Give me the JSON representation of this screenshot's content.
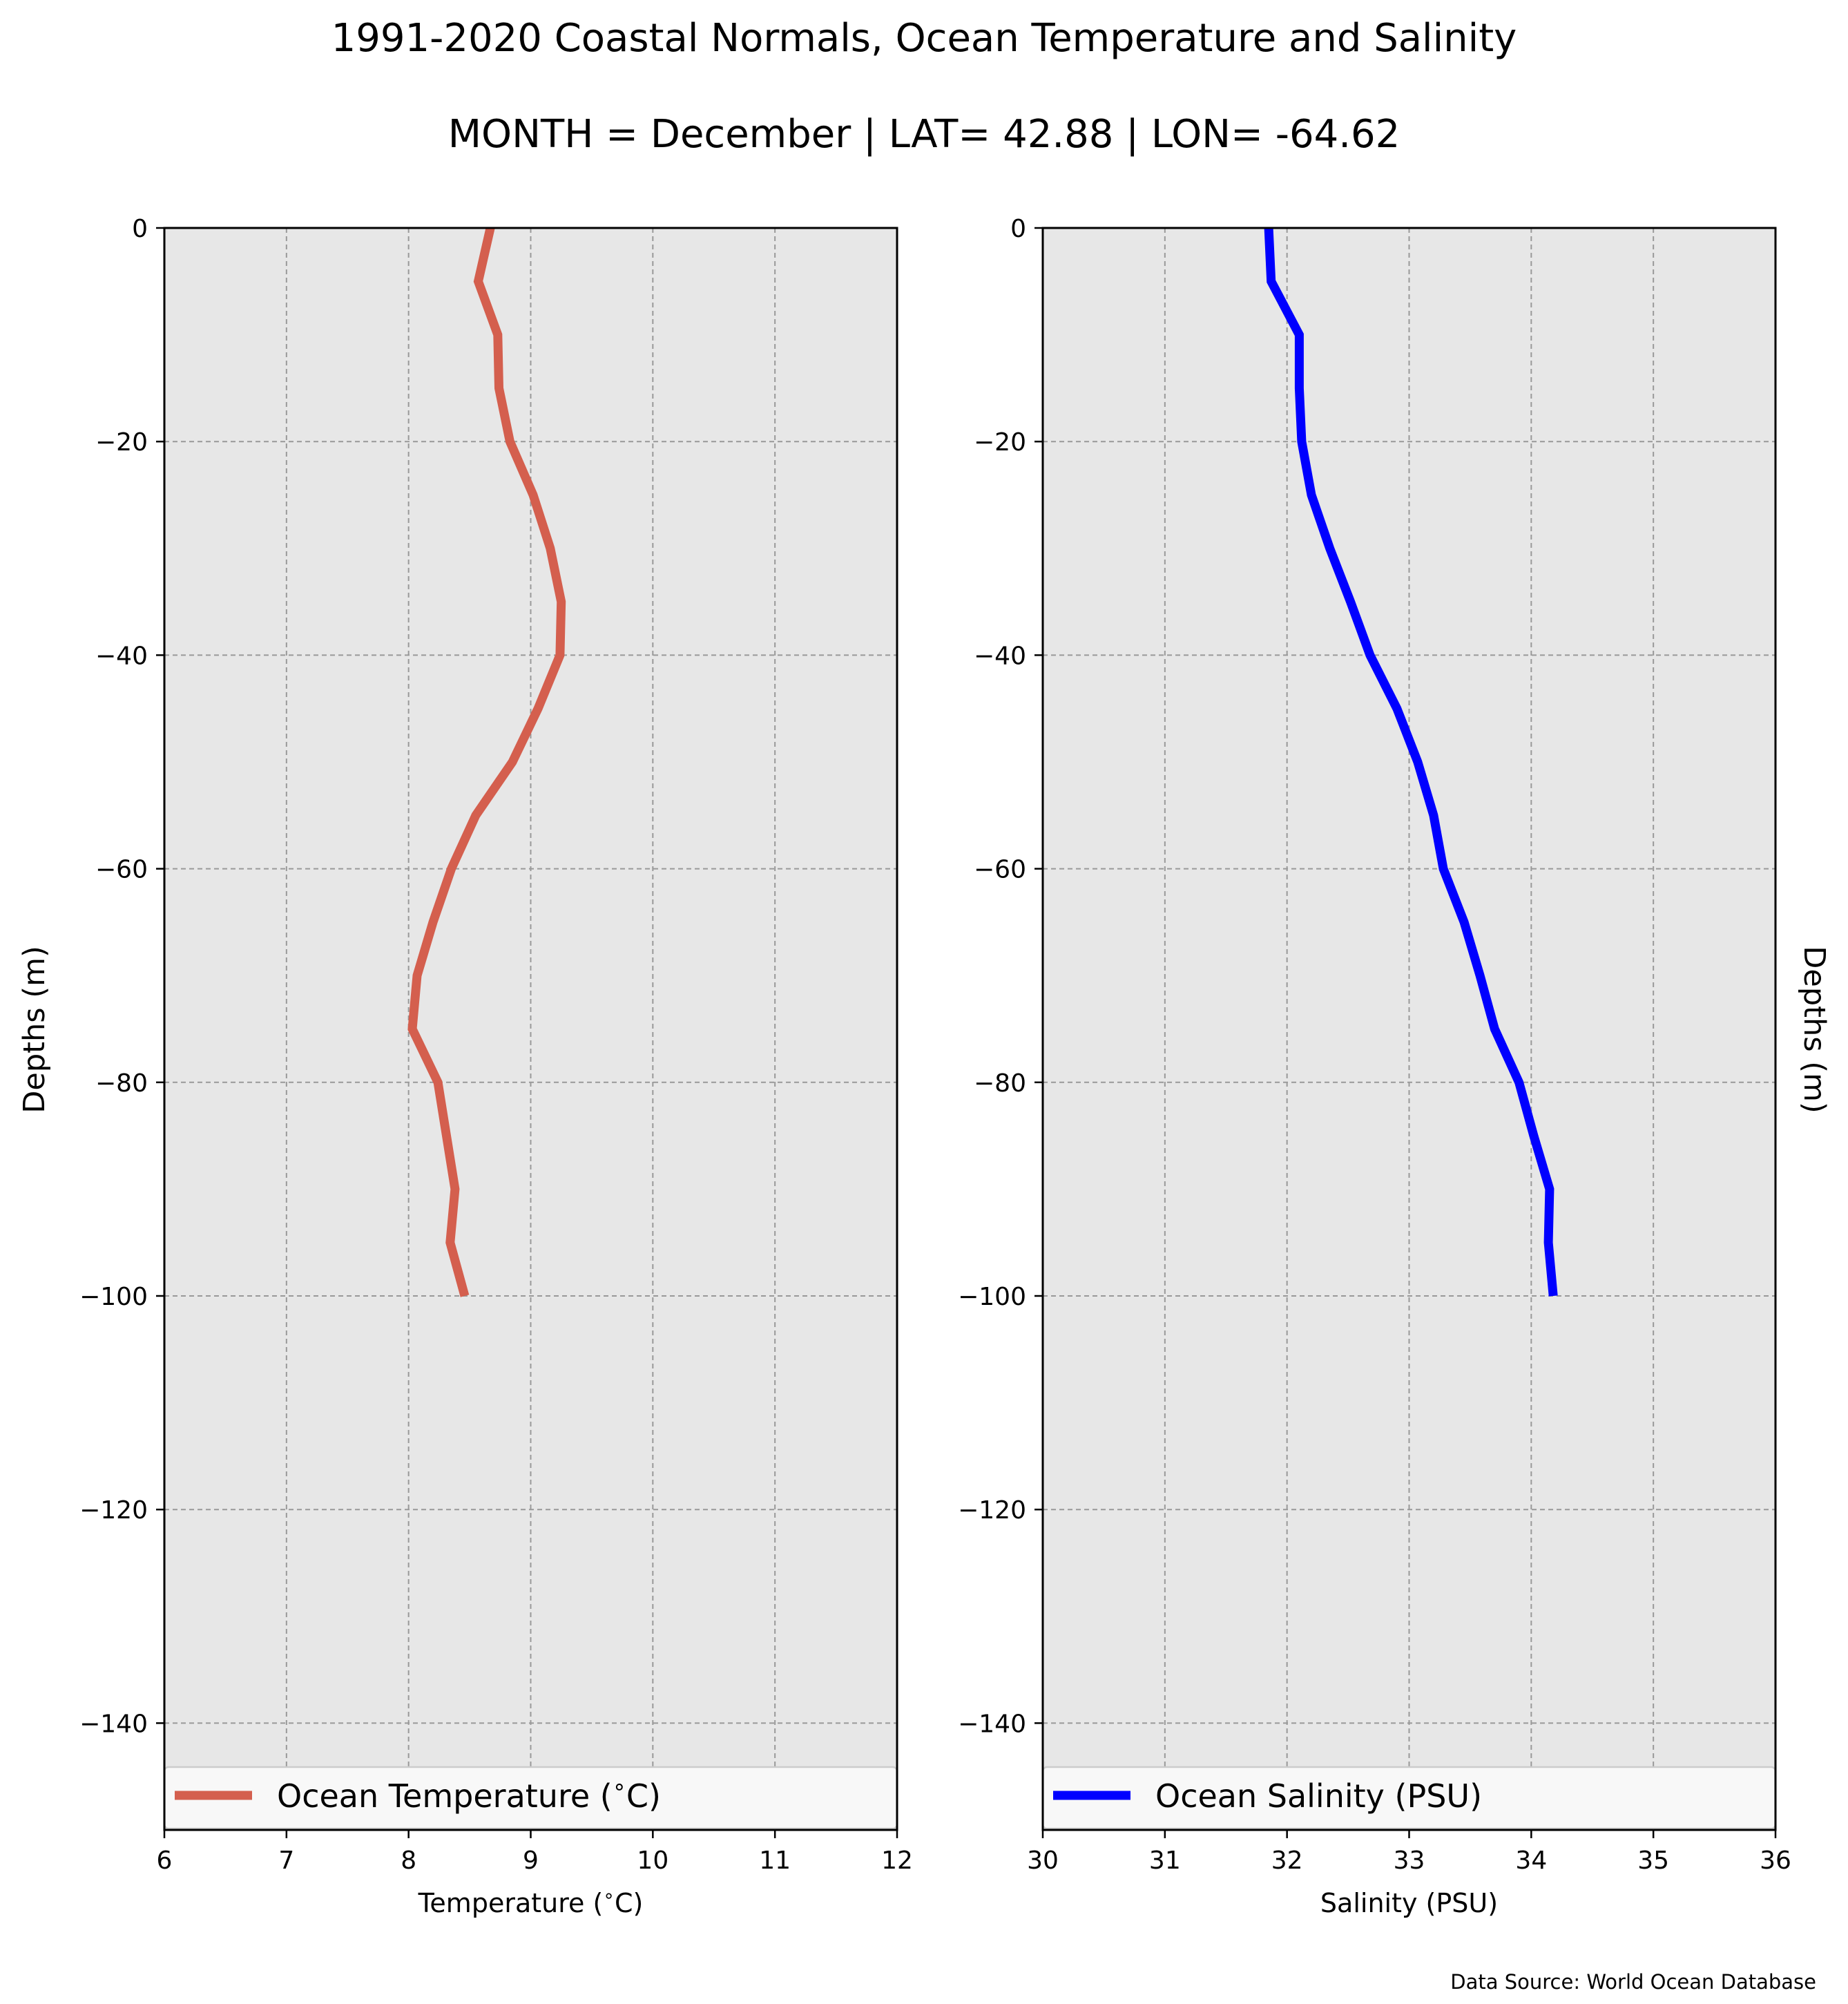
{
  "title": "1991-2020 Coastal Normals, Ocean Temperature and Salinity",
  "subtitle": "MONTH = December | LAT= 42.88 | LON= -64.62",
  "source": "Data Source: World Ocean Database",
  "chart_data": [
    {
      "type": "line",
      "xlabel": "Temperature ($^\\circ$C)",
      "ylabel": "Depths (m)",
      "ylabel_side": "left",
      "xlim": [
        6,
        12
      ],
      "ylim": [
        -150,
        0
      ],
      "xticks": [
        6,
        7,
        8,
        9,
        10,
        11,
        12
      ],
      "yticks": [
        0,
        -20,
        -40,
        -60,
        -80,
        -100,
        -120,
        -140
      ],
      "grid": true,
      "legend_placement": "bottom",
      "series": [
        {
          "name": "Ocean Temperature ($^\\circ$C)",
          "color": "#d45f4e",
          "x": [
            8.67,
            8.57,
            8.73,
            8.74,
            8.83,
            9.02,
            9.16,
            9.25,
            9.24,
            9.06,
            8.85,
            8.55,
            8.35,
            8.2,
            8.07,
            8.03,
            8.24,
            8.31,
            8.38,
            8.34,
            8.46
          ],
          "y": [
            0,
            -5,
            -10,
            -15,
            -20,
            -25,
            -30,
            -35,
            -40,
            -45,
            -50,
            -55,
            -60,
            -65,
            -70,
            -75,
            -80,
            -85,
            -90,
            -95,
            -100
          ]
        }
      ]
    },
    {
      "type": "line",
      "xlabel": "Salinity (PSU)",
      "ylabel": "Depths (m)",
      "ylabel_side": "right",
      "xlim": [
        30,
        36
      ],
      "ylim": [
        -150,
        0
      ],
      "xticks": [
        30,
        31,
        32,
        33,
        34,
        35,
        36
      ],
      "yticks": [
        0,
        -20,
        -40,
        -60,
        -80,
        -100,
        -120,
        -140
      ],
      "grid": true,
      "legend_placement": "bottom",
      "series": [
        {
          "name": "Ocean Salinity (PSU)",
          "color": "#0000ff",
          "x": [
            31.85,
            31.87,
            32.1,
            32.1,
            32.12,
            32.2,
            32.35,
            32.52,
            32.68,
            32.9,
            33.07,
            33.2,
            33.28,
            33.45,
            33.58,
            33.7,
            33.9,
            34.02,
            34.15,
            34.14,
            34.18
          ],
          "y": [
            0,
            -5,
            -10,
            -15,
            -20,
            -25,
            -30,
            -35,
            -40,
            -45,
            -50,
            -55,
            -60,
            -65,
            -70,
            -75,
            -80,
            -85,
            -90,
            -95,
            -100
          ]
        }
      ]
    }
  ]
}
